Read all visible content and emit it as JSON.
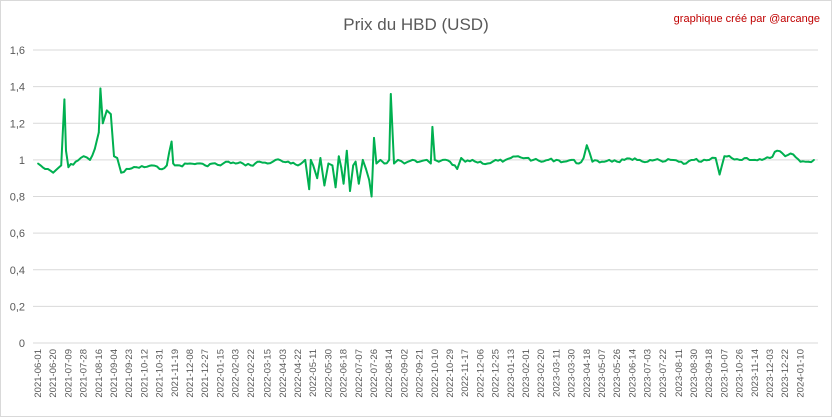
{
  "chart_data": {
    "type": "line",
    "title": "Prix du HBD (USD)",
    "credit": "graphique créé par @arcange",
    "xlabel": "",
    "ylabel": "",
    "ylim": [
      0,
      1.6
    ],
    "y_ticks": [
      0,
      0.2,
      0.4,
      0.6,
      0.8,
      1,
      1.2,
      1.4,
      1.6
    ],
    "y_tick_labels": [
      "0",
      "0,2",
      "0,4",
      "0,6",
      "0,8",
      "1",
      "1,2",
      "1,4",
      "1,6"
    ],
    "grid": true,
    "legend": "none",
    "x_tick_labels": [
      "2021-06-01",
      "2021-06-20",
      "2021-07-09",
      "2021-07-28",
      "2021-08-16",
      "2021-09-04",
      "2021-09-23",
      "2021-10-12",
      "2021-10-31",
      "2021-11-19",
      "2021-12-08",
      "2021-12-27",
      "2022-01-15",
      "2022-02-03",
      "2022-02-22",
      "2022-03-15",
      "2022-04-03",
      "2022-04-22",
      "2022-05-11",
      "2022-05-30",
      "2022-06-18",
      "2022-07-07",
      "2022-07-26",
      "2022-08-14",
      "2022-09-02",
      "2022-09-21",
      "2022-10-10",
      "2022-10-29",
      "2022-11-17",
      "2022-12-06",
      "2022-12-25",
      "2023-01-13",
      "2023-02-01",
      "2023-02-20",
      "2023-03-11",
      "2023-03-30",
      "2023-04-18",
      "2023-05-07",
      "2023-05-26",
      "2023-06-14",
      "2023-07-03",
      "2023-07-22",
      "2023-08-11",
      "2023-08-30",
      "2023-09-18",
      "2023-10-07",
      "2023-10-26",
      "2023-11-14",
      "2023-12-03",
      "2023-12-22",
      "2024-01-10"
    ],
    "series": [
      {
        "color": "#00b050",
        "x": [
          "2021-06-01",
          "2021-06-10",
          "2021-06-20",
          "2021-06-30",
          "2021-07-04",
          "2021-07-06",
          "2021-07-09",
          "2021-07-18",
          "2021-07-28",
          "2021-08-05",
          "2021-08-11",
          "2021-08-16",
          "2021-08-18",
          "2021-08-21",
          "2021-08-26",
          "2021-08-31",
          "2021-09-04",
          "2021-09-08",
          "2021-09-13",
          "2021-09-23",
          "2021-10-02",
          "2021-10-12",
          "2021-10-21",
          "2021-10-31",
          "2021-11-09",
          "2021-11-15",
          "2021-11-17",
          "2021-11-19",
          "2021-11-25",
          "2021-12-08",
          "2021-12-17",
          "2021-12-27",
          "2022-01-05",
          "2022-01-15",
          "2022-01-25",
          "2022-02-03",
          "2022-02-12",
          "2022-02-22",
          "2022-03-05",
          "2022-03-15",
          "2022-03-25",
          "2022-04-03",
          "2022-04-13",
          "2022-04-22",
          "2022-05-01",
          "2022-05-06",
          "2022-05-08",
          "2022-05-11",
          "2022-05-16",
          "2022-05-20",
          "2022-05-25",
          "2022-05-30",
          "2022-06-04",
          "2022-06-08",
          "2022-06-12",
          "2022-06-15",
          "2022-06-18",
          "2022-06-22",
          "2022-06-26",
          "2022-06-30",
          "2022-07-03",
          "2022-07-07",
          "2022-07-12",
          "2022-07-16",
          "2022-07-20",
          "2022-07-23",
          "2022-07-26",
          "2022-07-29",
          "2022-08-03",
          "2022-08-08",
          "2022-08-14",
          "2022-08-16",
          "2022-08-20",
          "2022-08-25",
          "2022-09-02",
          "2022-09-12",
          "2022-09-21",
          "2022-09-30",
          "2022-10-05",
          "2022-10-07",
          "2022-10-10",
          "2022-10-15",
          "2022-10-20",
          "2022-10-29",
          "2022-11-07",
          "2022-11-12",
          "2022-11-17",
          "2022-11-26",
          "2022-12-06",
          "2022-12-15",
          "2022-12-25",
          "2023-01-03",
          "2023-01-13",
          "2023-01-22",
          "2023-02-01",
          "2023-02-10",
          "2023-02-20",
          "2023-03-01",
          "2023-03-11",
          "2023-03-20",
          "2023-03-30",
          "2023-04-08",
          "2023-04-14",
          "2023-04-18",
          "2023-04-25",
          "2023-05-07",
          "2023-05-16",
          "2023-05-26",
          "2023-06-04",
          "2023-06-14",
          "2023-06-23",
          "2023-07-03",
          "2023-07-12",
          "2023-07-22",
          "2023-08-01",
          "2023-08-11",
          "2023-08-20",
          "2023-08-30",
          "2023-09-08",
          "2023-09-18",
          "2023-09-26",
          "2023-10-01",
          "2023-10-07",
          "2023-10-16",
          "2023-10-26",
          "2023-11-04",
          "2023-11-14",
          "2023-11-23",
          "2023-12-03",
          "2023-12-12",
          "2023-12-22",
          "2024-01-01",
          "2024-01-10",
          "2024-01-20",
          "2024-01-27"
        ],
        "values": [
          0.98,
          0.95,
          0.93,
          0.97,
          1.33,
          1.05,
          0.96,
          0.99,
          1.02,
          1.0,
          1.06,
          1.15,
          1.39,
          1.2,
          1.27,
          1.25,
          1.02,
          1.01,
          0.93,
          0.95,
          0.96,
          0.96,
          0.97,
          0.95,
          0.97,
          1.1,
          0.98,
          0.97,
          0.97,
          0.98,
          0.98,
          0.97,
          0.98,
          0.97,
          0.99,
          0.98,
          0.98,
          0.97,
          0.99,
          0.98,
          1.0,
          0.99,
          0.98,
          0.97,
          1.0,
          0.84,
          1.0,
          0.97,
          0.9,
          1.01,
          0.86,
          0.98,
          0.97,
          0.85,
          1.02,
          0.96,
          0.87,
          1.05,
          0.83,
          0.97,
          0.99,
          0.87,
          1.0,
          0.95,
          0.89,
          0.8,
          1.12,
          0.98,
          1.0,
          0.98,
          1.0,
          1.36,
          0.98,
          1.0,
          0.98,
          1.0,
          0.99,
          1.0,
          0.98,
          1.18,
          1.0,
          0.99,
          1.0,
          0.99,
          0.95,
          1.01,
          0.99,
          1.0,
          0.99,
          0.98,
          1.0,
          0.99,
          1.01,
          1.02,
          1.01,
          1.0,
          0.99,
          1.0,
          1.0,
          0.99,
          1.0,
          0.98,
          1.01,
          1.08,
          0.99,
          0.99,
          1.0,
          0.99,
          1.0,
          1.0,
          1.0,
          0.99,
          1.0,
          0.99,
          1.0,
          0.99,
          0.98,
          1.0,
          0.99,
          1.0,
          1.01,
          0.92,
          1.02,
          1.01,
          1.0,
          1.01,
          1.0,
          1.0,
          1.01,
          1.05,
          1.02,
          1.03,
          0.99,
          0.99,
          1.0
        ]
      }
    ]
  }
}
